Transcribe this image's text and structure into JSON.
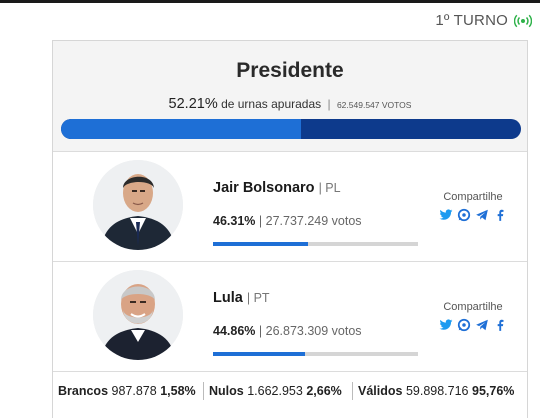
{
  "header": {
    "turno": "1º TURNO",
    "live_icon": "broadcast-icon"
  },
  "race": {
    "title": "Presidente",
    "apuradas_pct": "52.21%",
    "apuradas_label": "de urnas apuradas",
    "sep": "|",
    "total_votos": "62.549.547 VOTOS",
    "progress_fraction": 0.5221
  },
  "candidates": [
    {
      "name": "Jair Bolsonaro",
      "party": "PL",
      "pct": "46.31%",
      "votos": "27.737.249 votos",
      "bar_fraction": 0.4631,
      "share_label": "Compartilhe"
    },
    {
      "name": "Lula",
      "party": "PT",
      "pct": "44.86%",
      "votos": "26.873.309 votos",
      "bar_fraction": 0.4486,
      "share_label": "Compartilhe"
    }
  ],
  "footer": {
    "brancos": {
      "label": "Brancos",
      "value": "987.878",
      "pct": "1,58%"
    },
    "nulos": {
      "label": "Nulos",
      "value": "1.662.953",
      "pct": "2,66%"
    },
    "validos": {
      "label": "Válidos",
      "value": "59.898.716",
      "pct": "95,76%"
    }
  },
  "colors": {
    "bar_dark": "#0d3a8c",
    "bar_light": "#1e6fd6",
    "live_green": "#2fb24a",
    "twitter": "#1d9bf0",
    "share_blue": "#1e6fd6"
  }
}
